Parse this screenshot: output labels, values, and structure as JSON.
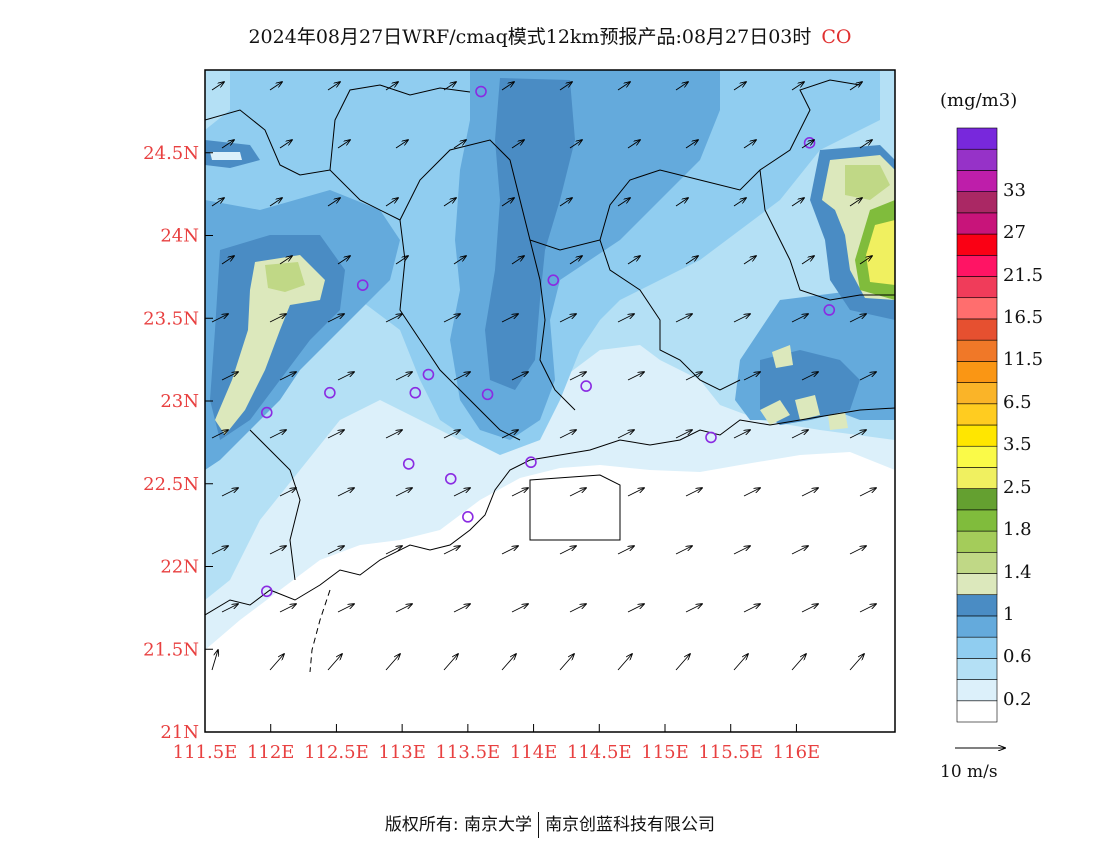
{
  "title": {
    "main": "2024年08月27日WRF/cmaq模式12km预报产品:08月27日03时",
    "species": "CO"
  },
  "colorbar": {
    "unit": "(mg/m3)",
    "colors": [
      "#ffffff",
      "#dcf0fa",
      "#b4e0f5",
      "#90cdf0",
      "#64aadc",
      "#4a8cc4",
      "#dce8bc",
      "#c0d886",
      "#a4cc5a",
      "#80bc3c",
      "#64a030",
      "#f0f060",
      "#fafa48",
      "#ffe600",
      "#ffcc20",
      "#fab428",
      "#fa9614",
      "#f07828",
      "#e65030",
      "#ff6e6e",
      "#f03c5a",
      "#ff1464",
      "#fa0014",
      "#c8147a",
      "#aa2864",
      "#be1eaa",
      "#9632c8",
      "#7828dc"
    ],
    "labels": [
      {
        "text": "0.2",
        "index": 1
      },
      {
        "text": "0.6",
        "index": 3
      },
      {
        "text": "1",
        "index": 5
      },
      {
        "text": "1.4",
        "index": 7
      },
      {
        "text": "1.8",
        "index": 9
      },
      {
        "text": "2.5",
        "index": 11
      },
      {
        "text": "3.5",
        "index": 13
      },
      {
        "text": "6.5",
        "index": 15
      },
      {
        "text": "11.5",
        "index": 17
      },
      {
        "text": "16.5",
        "index": 19
      },
      {
        "text": "21.5",
        "index": 21
      },
      {
        "text": "27",
        "index": 23
      },
      {
        "text": "33",
        "index": 25
      }
    ]
  },
  "axes": {
    "lon_ticks": [
      "111.5E",
      "112E",
      "112.5E",
      "113E",
      "113.5E",
      "114E",
      "114.5E",
      "115E",
      "115.5E",
      "116E"
    ],
    "lon_values": [
      111.5,
      112,
      112.5,
      113,
      113.5,
      114,
      114.5,
      115,
      115.5,
      116
    ],
    "lat_ticks": [
      "21N",
      "21.5N",
      "22N",
      "22.5N",
      "23N",
      "23.5N",
      "24N",
      "24.5N"
    ],
    "lat_values": [
      21,
      21.5,
      22,
      22.5,
      23,
      23.5,
      24,
      24.5
    ],
    "lon_range": [
      111.5,
      116.75
    ],
    "lat_range": [
      21,
      25.0
    ]
  },
  "wind_reference": {
    "label": "10 m/s"
  },
  "stations": [
    [
      113.6,
      24.87
    ],
    [
      116.1,
      24.56
    ],
    [
      112.7,
      23.7
    ],
    [
      114.15,
      23.73
    ],
    [
      116.25,
      23.55
    ],
    [
      112.45,
      23.05
    ],
    [
      113.1,
      23.05
    ],
    [
      113.2,
      23.16
    ],
    [
      113.65,
      23.04
    ],
    [
      114.4,
      23.09
    ],
    [
      111.97,
      22.93
    ],
    [
      115.35,
      22.78
    ],
    [
      113.05,
      22.62
    ],
    [
      113.37,
      22.53
    ],
    [
      113.98,
      22.63
    ],
    [
      113.5,
      22.3
    ],
    [
      111.97,
      21.85
    ]
  ],
  "footer": {
    "left": "版权所有: 南京大学",
    "right": "南京创蓝科技有限公司"
  }
}
